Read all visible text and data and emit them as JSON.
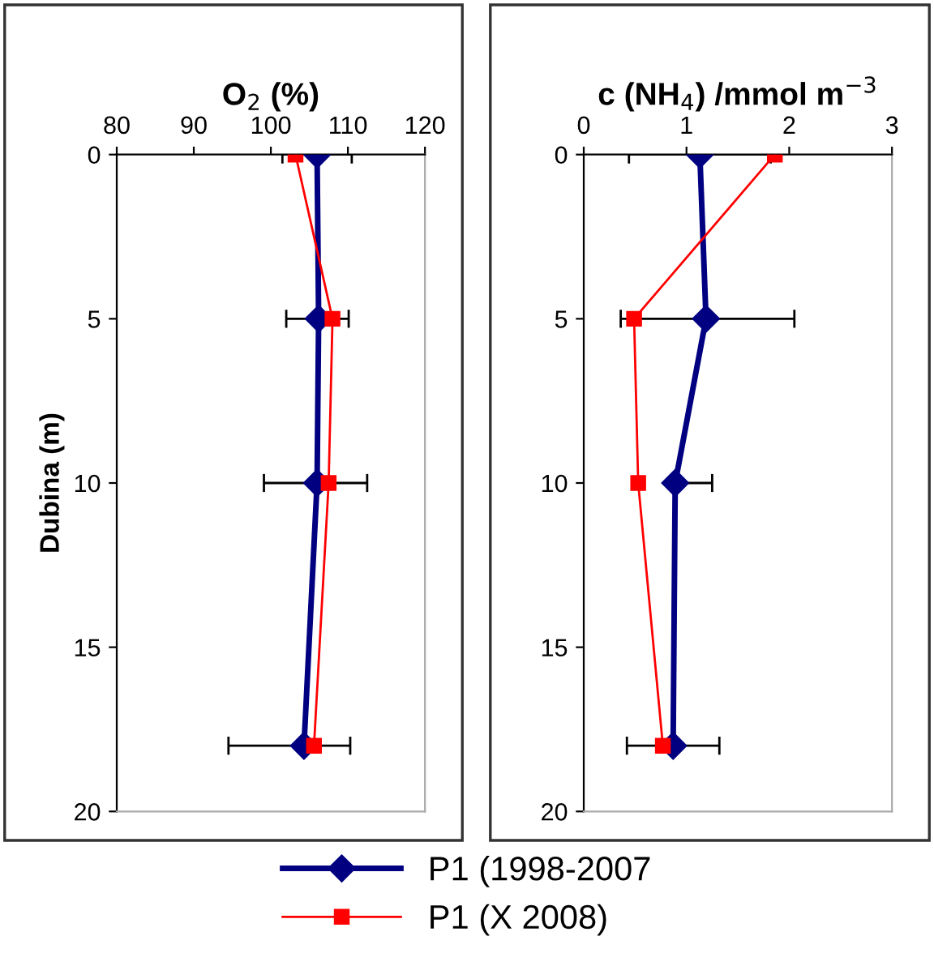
{
  "chart_data": [
    {
      "type": "line",
      "title": "O$_{2}$ (%)",
      "ylabel": "Dubina (m)",
      "xlim": [
        80,
        120
      ],
      "xticks": [
        80,
        90,
        100,
        110,
        120
      ],
      "ylim": [
        20,
        0
      ],
      "yticks": [
        0,
        5,
        10,
        15,
        20
      ],
      "grid": false,
      "legend": "bottom",
      "series": [
        {
          "name": "P1 (1998-2007",
          "color": "#000080",
          "marker": "diamond",
          "x": [
            106,
            106.2,
            106,
            104.3
          ],
          "values": [
            0,
            5,
            10,
            18
          ],
          "xerrors": [
            [
              101.5,
              110.5
            ],
            [
              102,
              110.1
            ],
            [
              99.1,
              112.5
            ],
            [
              94.5,
              110.3
            ]
          ]
        },
        {
          "name": "P1 (X 2008)",
          "color": "#ff0000",
          "marker": "square",
          "x": [
            103.2,
            108,
            107.5,
            105.6
          ],
          "values": [
            0,
            5,
            10,
            18
          ]
        }
      ]
    },
    {
      "type": "line",
      "title": "c (NH$_{4}$) /mmol m$^{−3}$",
      "xlim": [
        0,
        3
      ],
      "xticks": [
        0,
        1,
        2,
        3
      ],
      "ylim": [
        20,
        0
      ],
      "yticks": [
        0,
        5,
        10,
        15,
        20
      ],
      "grid": false,
      "series": [
        {
          "color": "#000080",
          "marker": "diamond",
          "x": [
            1.13,
            1.19,
            0.89,
            0.87
          ],
          "values": [
            0,
            5,
            10,
            18
          ],
          "xerrors": [
            [
              0.44,
              1.82
            ],
            [
              0.36,
              2.05
            ],
            [
              0.89,
              1.25
            ],
            [
              0.42,
              1.32
            ]
          ]
        },
        {
          "color": "#ff0000",
          "marker": "square",
          "x": [
            1.86,
            0.49,
            0.53,
            0.77
          ],
          "values": [
            0,
            5,
            10,
            18
          ]
        }
      ]
    }
  ]
}
